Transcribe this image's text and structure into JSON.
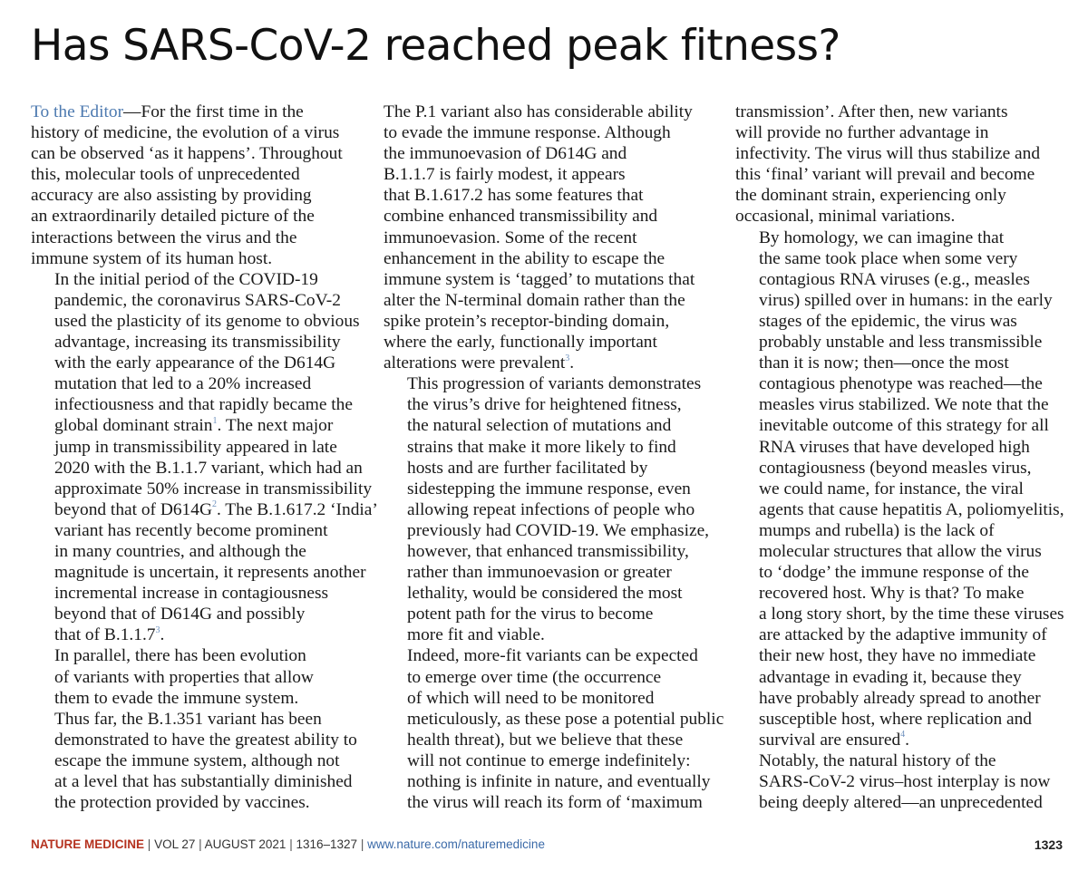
{
  "title": "Has SARS-CoV-2 reached peak fitness?",
  "columns": [
    {
      "paragraphs": [
        {
          "lines": [
            "To the Editor",
            "—For the first time in the",
            "history of medicine, the evolution of a virus",
            "can be observed ‘as it happens’. Throughout",
            "this, molecular tools of unprecedented",
            "accuracy are also assisting by providing",
            "an extraordinarily detailed picture of the",
            "interactions between the virus and the",
            "immune system of its human host."
          ]
        },
        {
          "lines": [
            "In the initial period of the COVID-19",
            "pandemic, the coronavirus SARS-CoV-2",
            "used the plasticity of its genome to obvious",
            "advantage, increasing its transmissibility",
            "with the early appearance of the D614G",
            "mutation that led to a 20% increased",
            "infectiousness and that rapidly became the",
            "global dominant strain",
            "1",
            ". The next major",
            "jump in transmissibility appeared in late",
            "2020 with the B.1.1.7 variant, which had an",
            "approximate 50% increase in transmissibility",
            "beyond that of D614G",
            "2",
            ". The B.1.617.2 ‘India’",
            "variant has recently become prominent",
            "in many countries, and although the",
            "magnitude is uncertain, it represents another",
            "incremental increase in contagiousness",
            "beyond that of D614G and possibly",
            "that of B.1.1.7",
            "3",
            "."
          ]
        },
        {
          "lines": [
            "In parallel, there has been evolution",
            "of variants with properties that allow",
            "them to evade the immune system.",
            "Thus far, the B.1.351 variant has been",
            "demonstrated to have the greatest ability to",
            "escape the immune system, although not",
            "at a level that has substantially diminished",
            "the protection provided by vaccines."
          ]
        }
      ]
    },
    {
      "paragraphs": [
        {
          "lines": [
            "The P.1 variant also has considerable ability",
            "to evade the immune response. Although",
            "the immunoevasion of D614G and",
            "B.1.1.7 is fairly modest, it appears",
            "that B.1.617.2 has some features that",
            "combine enhanced transmissibility and",
            "immunoevasion. Some of the recent",
            "enhancement in the ability to escape the",
            "immune system is ‘tagged’ to mutations that",
            "alter the N-terminal domain rather than the",
            "spike protein’s receptor-binding domain,",
            "where the early, functionally important",
            "alterations were prevalent",
            "3",
            "."
          ]
        },
        {
          "lines": [
            "This progression of variants demonstrates",
            "the virus’s drive for heightened fitness,",
            "the natural selection of mutations and",
            "strains that make it more likely to find",
            "hosts and are further facilitated by",
            "sidestepping the immune response, even",
            "allowing repeat infections of people who",
            "previously had COVID-19. We emphasize,",
            "however, that enhanced transmissibility,",
            "rather than immunoevasion or greater",
            "lethality, would be considered the most",
            "potent path for the virus to become",
            "more fit and viable."
          ]
        },
        {
          "lines": [
            "Indeed, more-fit variants can be expected",
            "to emerge over time (the occurrence",
            "of which will need to be monitored",
            "meticulously, as these pose a potential public",
            "health threat), but we believe that these",
            "will not continue to emerge indefinitely:",
            "nothing is infinite in nature, and eventually",
            "the virus will reach its form of ‘maximum"
          ]
        }
      ]
    },
    {
      "paragraphs": [
        {
          "lines": [
            "transmission’. After then, new variants",
            "will provide no further advantage in",
            "infectivity. The virus will thus stabilize and",
            "this ‘final’ variant will prevail and become",
            "the dominant strain, experiencing only",
            "occasional, minimal variations."
          ]
        },
        {
          "lines": [
            "By homology, we can imagine that",
            "the same took place when some very",
            "contagious RNA viruses (e.g., measles",
            "virus) spilled over in humans: in the early",
            "stages of the epidemic, the virus was",
            "probably unstable and less transmissible",
            "than it is now; then—once the most",
            "contagious phenotype was reached—the",
            "measles virus stabilized. We note that the",
            "inevitable outcome of this strategy for all",
            "RNA viruses that have developed high",
            "contagiousness (beyond measles virus,",
            "we could name, for instance, the viral",
            "agents that cause hepatitis A, poliomyelitis,",
            "mumps and rubella) is the lack of",
            "molecular structures that allow the virus",
            "to ‘dodge’ the immune response of the",
            "recovered host. Why is that? To make",
            "a long story short, by the time these viruses",
            "are attacked by the adaptive immunity of",
            "their new host, they have no immediate",
            "advantage in evading it, because they",
            "have probably already spread to another",
            "susceptible host, where replication and",
            "survival are ensured",
            "4",
            "."
          ]
        },
        {
          "lines": [
            "Notably, the natural history of the",
            "SARS-CoV-2 virus–host interplay is now",
            "being deeply altered—an unprecedented"
          ]
        }
      ]
    }
  ],
  "footer": {
    "journal": "NATURE MEDICINE",
    "separator": "|",
    "volume": "VOL 27",
    "date": "AUGUST 2021",
    "pages": "1316–1327",
    "url": "www.nature.com/naturemedicine",
    "page_number": "1323"
  }
}
